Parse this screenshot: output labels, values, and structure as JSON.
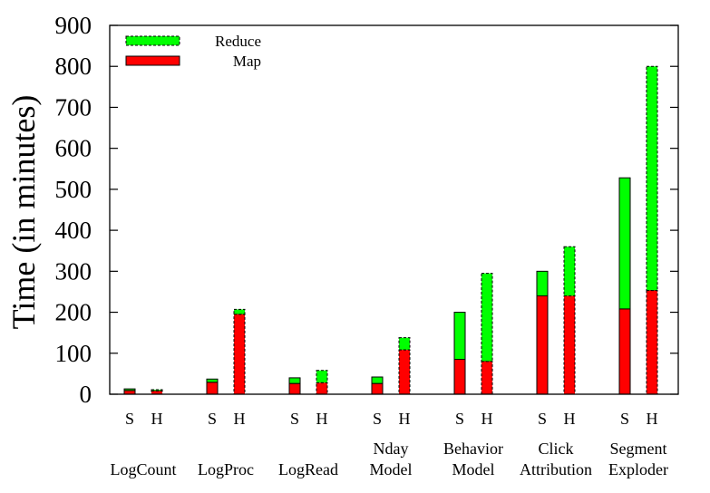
{
  "chart_data": {
    "type": "bar",
    "stacked": true,
    "ylabel": "Time (in minutes)",
    "xlabel": "",
    "ylim": [
      0,
      900
    ],
    "yticks": [
      0,
      100,
      200,
      300,
      400,
      500,
      600,
      700,
      800,
      900
    ],
    "grid": false,
    "legend_position": "top-left",
    "series_names": [
      "Reduce",
      "Map"
    ],
    "colors": {
      "map": "#ff0000",
      "reduce": "#00ff00",
      "outline": "#000000"
    },
    "groups": [
      {
        "label_lines": [
          "LogCount"
        ],
        "bars": [
          {
            "label": "S",
            "map": 9,
            "reduce": 4
          },
          {
            "label": "H",
            "map": 8,
            "reduce": 3
          }
        ]
      },
      {
        "label_lines": [
          "LogProc"
        ],
        "bars": [
          {
            "label": "S",
            "map": 29,
            "reduce": 8
          },
          {
            "label": "H",
            "map": 195,
            "reduce": 12
          }
        ]
      },
      {
        "label_lines": [
          "LogRead"
        ],
        "bars": [
          {
            "label": "S",
            "map": 26,
            "reduce": 14
          },
          {
            "label": "H",
            "map": 28,
            "reduce": 30
          }
        ]
      },
      {
        "label_lines": [
          "Nday",
          "Model"
        ],
        "bars": [
          {
            "label": "S",
            "map": 26,
            "reduce": 16
          },
          {
            "label": "H",
            "map": 108,
            "reduce": 30
          }
        ]
      },
      {
        "label_lines": [
          "Behavior",
          "Model"
        ],
        "bars": [
          {
            "label": "S",
            "map": 85,
            "reduce": 115
          },
          {
            "label": "H",
            "map": 80,
            "reduce": 215
          }
        ]
      },
      {
        "label_lines": [
          "Click",
          "Attribution"
        ],
        "bars": [
          {
            "label": "S",
            "map": 240,
            "reduce": 60
          },
          {
            "label": "H",
            "map": 240,
            "reduce": 120
          }
        ]
      },
      {
        "label_lines": [
          "Segment",
          "Exploder"
        ],
        "bars": [
          {
            "label": "S",
            "map": 208,
            "reduce": 320
          },
          {
            "label": "H",
            "map": 253,
            "reduce": 547
          }
        ]
      }
    ]
  }
}
